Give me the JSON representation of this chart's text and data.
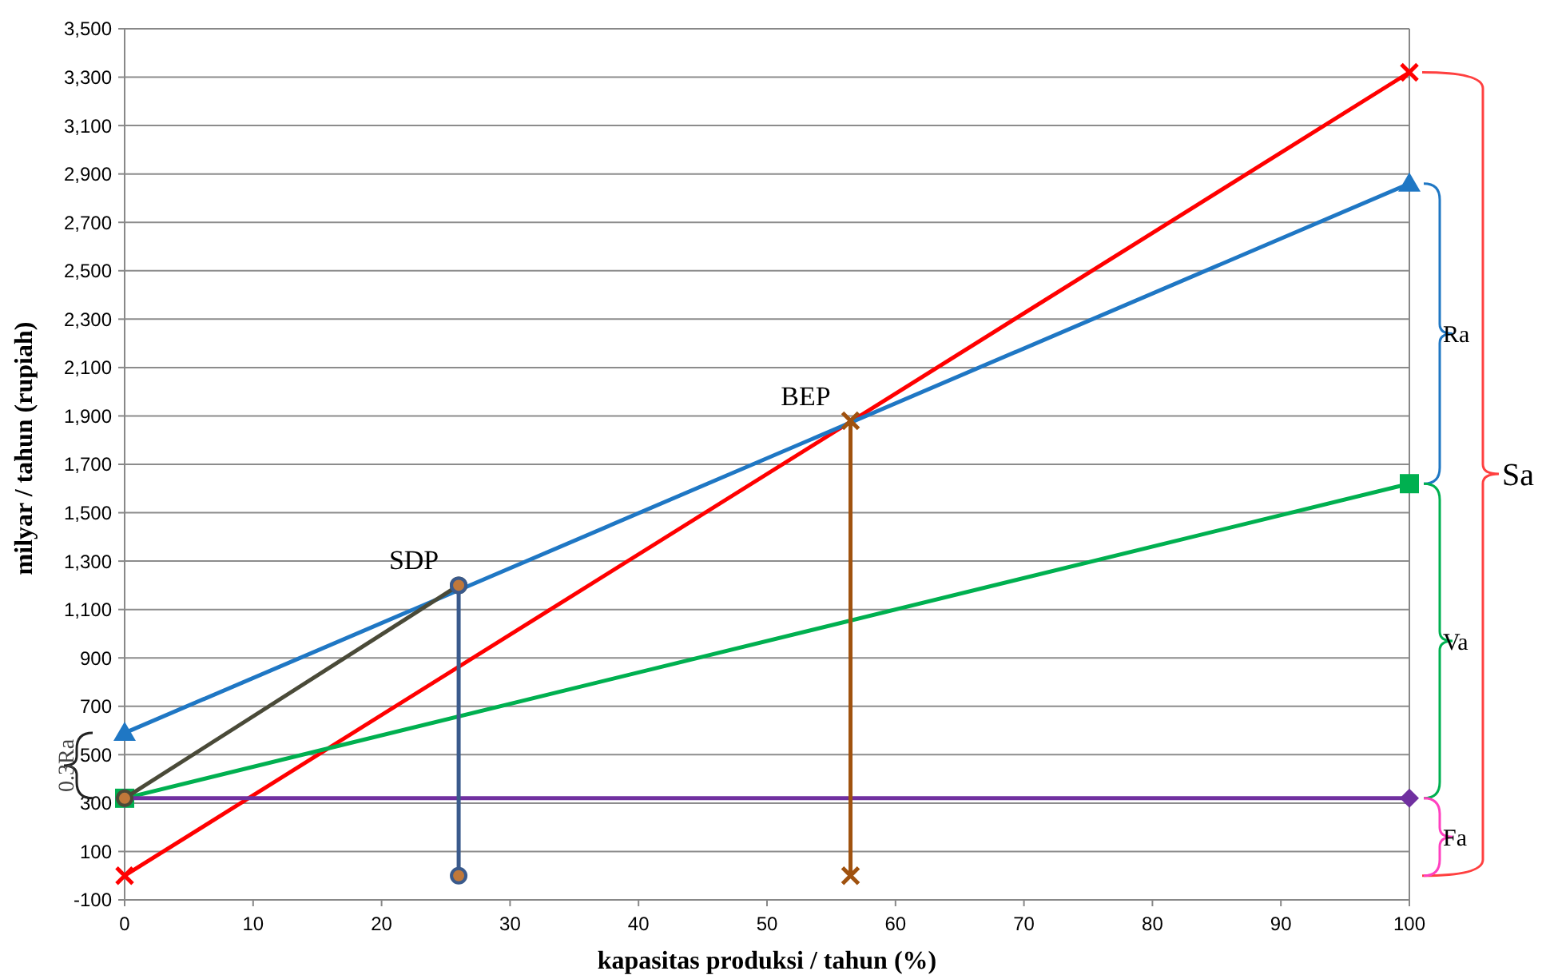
{
  "chart_data": {
    "type": "line",
    "xlabel": "kapasitas produksi / tahun (%)",
    "ylabel": "milyar / tahun (rupiah)",
    "xlim": [
      0,
      100
    ],
    "xticks": [
      0,
      10,
      20,
      30,
      40,
      50,
      60,
      70,
      80,
      90,
      100
    ],
    "ylim": [
      -100,
      3500
    ],
    "yticks": [
      -100,
      100,
      300,
      500,
      700,
      900,
      {
        "value": 1100,
        "label": "1,100"
      },
      {
        "value": 1300,
        "label": "1,300"
      },
      {
        "value": 1500,
        "label": "1,500"
      },
      {
        "value": 1700,
        "label": "1,700"
      },
      {
        "value": 1900,
        "label": "1,900"
      },
      {
        "value": 2100,
        "label": "2,100"
      },
      {
        "value": 2300,
        "label": "2,300"
      },
      {
        "value": 2500,
        "label": "2,500"
      },
      {
        "value": 2700,
        "label": "2,700"
      },
      {
        "value": 2900,
        "label": "2,900"
      },
      {
        "value": 3100,
        "label": "3,100"
      },
      {
        "value": 3300,
        "label": "3,300"
      },
      {
        "value": 3500,
        "label": "3,500"
      }
    ],
    "grid": "y",
    "line_style": "solid",
    "series": [
      {
        "color": "#ff0000",
        "x": [
          0,
          100
        ],
        "values": [
          0,
          3320
        ],
        "marker": "cross"
      },
      {
        "color": "#1f77c4",
        "x": [
          0,
          100
        ],
        "values": [
          590,
          2860
        ],
        "marker": "triangle"
      },
      {
        "color": "#00b050",
        "x": [
          0,
          100
        ],
        "values": [
          320,
          1620
        ],
        "marker": "square"
      },
      {
        "color": "#7030a0",
        "x": [
          0,
          100
        ],
        "values": [
          320,
          320
        ],
        "marker": "diamond"
      },
      {
        "color": "#4a4a38",
        "x": [
          0,
          26
        ],
        "values": [
          320,
          1200
        ],
        "marker": "circle"
      },
      {
        "color": "#3a5a8c",
        "x": [
          26,
          26
        ],
        "values": [
          0,
          1200
        ],
        "marker": "circle"
      },
      {
        "color": "#a0520f",
        "x": [
          56.5,
          56.5
        ],
        "values": [
          0,
          1880
        ],
        "marker": "cross"
      }
    ],
    "annotations": [
      {
        "text": "BEP",
        "x": 56.5,
        "y": 1880
      },
      {
        "text": "SDP",
        "x": 26,
        "y": 1200
      },
      "Sa",
      "Ra",
      "Va",
      "Fa",
      "0.3Ra"
    ]
  }
}
